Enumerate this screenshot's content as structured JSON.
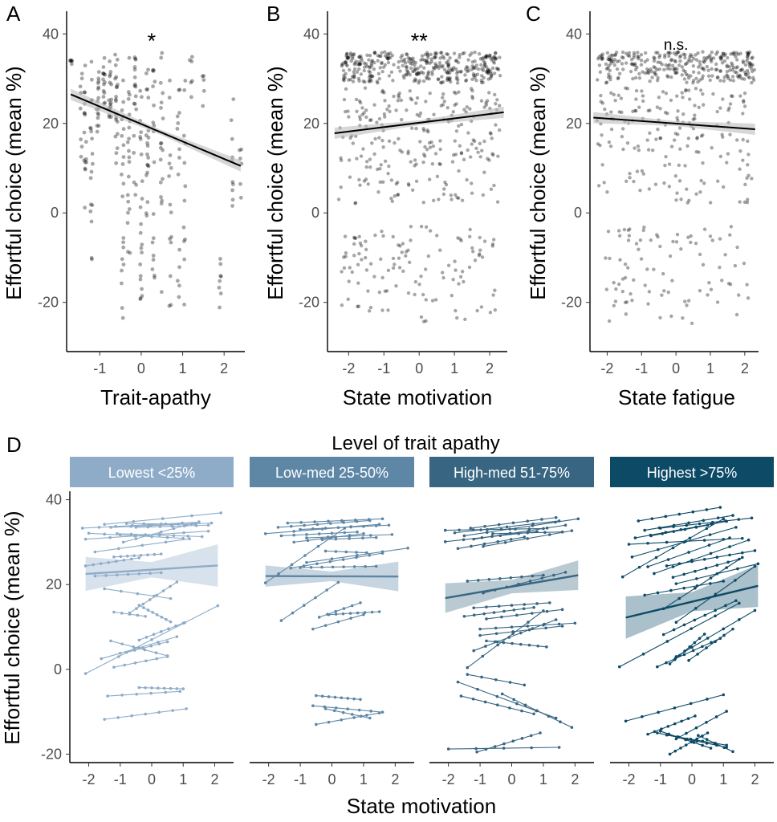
{
  "colors": {
    "point": "#000000",
    "trend": "#000000",
    "band": "#bdbdbd",
    "facets": [
      "#8eacc8",
      "#5e87a6",
      "#386682",
      "#0c4a66"
    ]
  },
  "chart_data": [
    {
      "panel": "A",
      "type": "scatter",
      "xlabel": "Trait-apathy",
      "ylabel": "Effortful choice (mean %)",
      "xlim": [
        -1.8,
        2.5
      ],
      "ylim": [
        -31,
        44
      ],
      "xticks": [
        -1,
        0,
        1,
        2
      ],
      "yticks": [
        -20,
        0,
        20,
        40
      ],
      "significance": "*",
      "trend": {
        "x": [
          -1.7,
          2.4
        ],
        "y": [
          26.5,
          10.5
        ]
      },
      "clusters": [
        {
          "x": -1.7,
          "y_min": 33,
          "y_max": 34.5,
          "n": 6
        },
        {
          "x": -1.45,
          "y_min": 10,
          "y_max": 33,
          "n": 8
        },
        {
          "x": -1.35,
          "y_min": -5,
          "y_max": 34,
          "n": 16
        },
        {
          "x": -1.2,
          "y_min": -11,
          "y_max": 34,
          "n": 18
        },
        {
          "x": -1.05,
          "y_min": 18,
          "y_max": 35,
          "n": 16
        },
        {
          "x": -0.9,
          "y_min": 23,
          "y_max": 35,
          "n": 14
        },
        {
          "x": -0.75,
          "y_min": 20,
          "y_max": 35,
          "n": 16
        },
        {
          "x": -0.6,
          "y_min": 10,
          "y_max": 36,
          "n": 20
        },
        {
          "x": -0.45,
          "y_min": -25,
          "y_max": 35,
          "n": 22
        },
        {
          "x": -0.3,
          "y_min": -11,
          "y_max": 36,
          "n": 20
        },
        {
          "x": -0.15,
          "y_min": 3,
          "y_max": 35,
          "n": 18
        },
        {
          "x": 0.0,
          "y_min": -20,
          "y_max": 36,
          "n": 22
        },
        {
          "x": 0.15,
          "y_min": -3,
          "y_max": 35,
          "n": 20
        },
        {
          "x": 0.3,
          "y_min": -22,
          "y_max": 34,
          "n": 18
        },
        {
          "x": 0.5,
          "y_min": -18,
          "y_max": 38,
          "n": 18
        },
        {
          "x": 0.7,
          "y_min": -25,
          "y_max": 35,
          "n": 14
        },
        {
          "x": 0.9,
          "y_min": -25,
          "y_max": 34,
          "n": 14
        },
        {
          "x": 1.05,
          "y_min": -21,
          "y_max": 33,
          "n": 12
        },
        {
          "x": 1.2,
          "y_min": 24,
          "y_max": 35,
          "n": 6
        },
        {
          "x": 1.5,
          "y_min": 20,
          "y_max": 31,
          "n": 5
        },
        {
          "x": 1.9,
          "y_min": -24,
          "y_max": -10,
          "n": 8
        },
        {
          "x": 2.2,
          "y_min": -1,
          "y_max": 28,
          "n": 10
        },
        {
          "x": 2.4,
          "y_min": 2,
          "y_max": 15,
          "n": 6
        }
      ]
    },
    {
      "panel": "B",
      "type": "scatter",
      "xlabel": "State motivation",
      "ylabel": "Effortful choice (mean %)",
      "xlim": [
        -2.6,
        2.5
      ],
      "ylim": [
        -31,
        44
      ],
      "xticks": [
        -2,
        -1,
        0,
        1,
        2
      ],
      "yticks": [
        -20,
        0,
        20,
        40
      ],
      "significance": "**",
      "trend": {
        "x": [
          -2.4,
          2.4
        ],
        "y": [
          17.8,
          22.5
        ]
      },
      "point_bands": [
        {
          "x_min": -2.2,
          "x_max": 2.3,
          "y_min": 29,
          "y_max": 36,
          "n": 360
        },
        {
          "x_min": -2.3,
          "x_max": 2.3,
          "y_min": 2,
          "y_max": 28,
          "n": 240
        },
        {
          "x_min": -2.2,
          "x_max": 2.2,
          "y_min": -25,
          "y_max": -3,
          "n": 120
        }
      ]
    },
    {
      "panel": "C",
      "type": "scatter",
      "xlabel": "State fatigue",
      "ylabel": "Effortful choice (mean %)",
      "xlim": [
        -2.5,
        2.4
      ],
      "ylim": [
        -31,
        44
      ],
      "xticks": [
        -2,
        -1,
        0,
        1,
        2
      ],
      "yticks": [
        -20,
        0,
        20,
        40
      ],
      "significance": "n.s.",
      "trend": {
        "x": [
          -2.4,
          2.3
        ],
        "y": [
          21.3,
          18.7
        ]
      },
      "point_bands": [
        {
          "x_min": -2.3,
          "x_max": 2.3,
          "y_min": 29,
          "y_max": 36,
          "n": 300
        },
        {
          "x_min": -2.3,
          "x_max": 2.2,
          "y_min": 2,
          "y_max": 28,
          "n": 180
        },
        {
          "x_min": -2.2,
          "x_max": 2.2,
          "y_min": -25,
          "y_max": -3,
          "n": 90
        }
      ]
    },
    {
      "panel": "D",
      "type": "line",
      "title": "Level of trait apathy",
      "xlabel": "State motivation",
      "ylabel": "Effortful choice (mean %)",
      "xlim": [
        -2.6,
        2.6
      ],
      "ylim": [
        -22,
        42
      ],
      "xticks": [
        -2,
        -1,
        0,
        1,
        2
      ],
      "yticks": [
        -20,
        0,
        20,
        40
      ],
      "facets": [
        {
          "label": "Lowest <25%",
          "trend": {
            "x": [
              -2.1,
              2.1
            ],
            "y": [
              22.5,
              24.5
            ],
            "band_start": 4,
            "band_end": 5
          },
          "lines": [
            [
              -2.2,
              33.3,
              1.5,
              34.7
            ],
            [
              -2.1,
              30.7,
              1.8,
              32.6
            ],
            [
              -1.8,
              27.7,
              1.2,
              30.8
            ],
            [
              -1.5,
              34.2,
              2.2,
              36.9
            ],
            [
              -1.3,
              33.5,
              1.9,
              34.5
            ],
            [
              -1.1,
              32.0,
              1.6,
              31.3
            ],
            [
              -0.9,
              30.0,
              1.5,
              34.8
            ],
            [
              -2.0,
              32.1,
              1.0,
              30.9
            ],
            [
              -0.5,
              33.5,
              1.8,
              34.0
            ],
            [
              -0.8,
              34.4,
              1.4,
              34.2
            ],
            [
              -2.1,
              24.4,
              -0.4,
              26.3
            ],
            [
              -1.2,
              26.5,
              0.3,
              27.2
            ],
            [
              -1.8,
              22.0,
              0.3,
              22.8
            ],
            [
              -1.5,
              19.0,
              0.6,
              16.7
            ],
            [
              -1.2,
              13.5,
              -0.2,
              12.5
            ],
            [
              -0.7,
              13.3,
              0.8,
              20.6
            ],
            [
              -0.4,
              15.1,
              0.6,
              11.2
            ],
            [
              -2.1,
              -1.0,
              2.1,
              15.0
            ],
            [
              -1.6,
              2.5,
              0.8,
              7.7
            ],
            [
              -1.3,
              6.7,
              0.5,
              3.2
            ],
            [
              -0.4,
              6.9,
              1.0,
              10.9
            ],
            [
              -0.8,
              4.0,
              0.5,
              6.5
            ],
            [
              -1.2,
              0.5,
              0.5,
              3.0
            ],
            [
              -1.5,
              -11.8,
              1.1,
              -9.3
            ],
            [
              -1.4,
              -6.3,
              0.9,
              -5.2
            ],
            [
              -0.4,
              -4.3,
              1.0,
              -4.6
            ]
          ]
        },
        {
          "label": "Low-med 25-50%",
          "trend": {
            "x": [
              -2.1,
              2.1
            ],
            "y": [
              22.0,
              21.9
            ],
            "band_start": 2.5,
            "band_end": 3.5
          },
          "lines": [
            [
              -2.1,
              32.0,
              1.5,
              34.2
            ],
            [
              -1.7,
              33.5,
              1.2,
              35.1
            ],
            [
              -1.4,
              34.5,
              1.6,
              35.5
            ],
            [
              -1.0,
              33.0,
              1.8,
              34.0
            ],
            [
              -1.6,
              31.5,
              0.8,
              32.4
            ],
            [
              -0.8,
              31.0,
              1.9,
              31.8
            ],
            [
              -1.2,
              30.0,
              1.0,
              32.0
            ],
            [
              -0.3,
              30.6,
              1.4,
              31.1
            ],
            [
              -2.1,
              20.4,
              0.4,
              33.3
            ],
            [
              -1.3,
              23.9,
              1.6,
              27.4
            ],
            [
              -0.8,
              25.2,
              2.4,
              28.6
            ],
            [
              -0.2,
              27.9,
              1.1,
              27.5
            ],
            [
              -1.0,
              24.0,
              1.4,
              24.3
            ],
            [
              -1.6,
              11.5,
              0.2,
              20.5
            ],
            [
              -0.4,
              12.3,
              0.9,
              15.7
            ],
            [
              -0.1,
              12.9,
              1.5,
              13.6
            ],
            [
              -0.6,
              9.5,
              1.0,
              12.9
            ],
            [
              -0.5,
              -6.2,
              0.9,
              -7.1
            ],
            [
              -0.6,
              -8.6,
              1.6,
              -10.1
            ],
            [
              -0.5,
              -13.0,
              1.5,
              -10.3
            ],
            [
              -0.2,
              -9.3,
              1.2,
              -11.5
            ]
          ]
        },
        {
          "label": "High-med 51-75%",
          "trend": {
            "x": [
              -2.1,
              2.1
            ],
            "y": [
              16.8,
              22.2
            ],
            "band_start": 3.5,
            "band_end": 3.5
          },
          "lines": [
            [
              -2.1,
              32.8,
              1.0,
              33.2
            ],
            [
              -1.8,
              32.2,
              1.5,
              35.0
            ],
            [
              -1.5,
              31.5,
              2.1,
              35.5
            ],
            [
              -1.2,
              30.7,
              1.7,
              34.0
            ],
            [
              -0.6,
              32.0,
              1.6,
              32.4
            ],
            [
              -2.1,
              30.1,
              0.8,
              32.5
            ],
            [
              -1.7,
              28.5,
              0.4,
              31.2
            ],
            [
              -0.9,
              29.0,
              1.9,
              32.7
            ],
            [
              -1.3,
              33.3,
              1.4,
              35.8
            ],
            [
              -1.4,
              20.8,
              1.0,
              22.2
            ],
            [
              -0.9,
              18.0,
              1.7,
              22.9
            ],
            [
              -1.2,
              14.5,
              1.2,
              15.7
            ],
            [
              -1.5,
              12.5,
              0.7,
              14.6
            ],
            [
              -1.0,
              9.5,
              2.0,
              10.9
            ],
            [
              -0.8,
              11.9,
              1.6,
              14.1
            ],
            [
              -1.2,
              4.4,
              1.4,
              11.7
            ],
            [
              -0.8,
              6.7,
              1.1,
              5.3
            ],
            [
              -1.0,
              8.0,
              1.6,
              10.2
            ],
            [
              -1.4,
              0.4,
              1.0,
              13.8
            ],
            [
              -1.4,
              -1.2,
              0.4,
              -3.7
            ],
            [
              -1.6,
              -6.3,
              0.7,
              -10.5
            ],
            [
              -0.3,
              -5.8,
              1.9,
              -13.7
            ],
            [
              -1.1,
              -19.5,
              0.9,
              -15.0
            ],
            [
              -2.0,
              -18.8,
              1.5,
              -18.4
            ],
            [
              -1.7,
              -3.0,
              1.4,
              -11.5
            ]
          ]
        },
        {
          "label": "Highest >75%",
          "trend": {
            "x": [
              -2.1,
              2.1
            ],
            "y": [
              12.2,
              19.7
            ],
            "band_start": 5,
            "band_end": 5
          },
          "lines": [
            [
              -1.7,
              35.0,
              0.9,
              38.2
            ],
            [
              -1.5,
              32.8,
              1.3,
              36.3
            ],
            [
              -1.0,
              33.3,
              1.9,
              35.7
            ],
            [
              -1.3,
              31.5,
              0.5,
              34.0
            ],
            [
              -1.8,
              31.0,
              1.1,
              34.9
            ],
            [
              -2.0,
              29.5,
              1.6,
              30.9
            ],
            [
              -1.9,
              26.5,
              1.4,
              33.5
            ],
            [
              -1.4,
              24.2,
              1.2,
              31.0
            ],
            [
              -1.2,
              22.6,
              1.8,
              30.5
            ],
            [
              -0.8,
              24.4,
              2.0,
              28.0
            ],
            [
              -0.6,
              21.7,
              1.5,
              26.0
            ],
            [
              -2.2,
              21.8,
              1.0,
              35.5
            ],
            [
              -0.5,
              20.2,
              2.1,
              24.9
            ],
            [
              -1.5,
              17.5,
              1.0,
              20.8
            ],
            [
              -0.9,
              14.3,
              1.6,
              26.4
            ],
            [
              -0.5,
              11.1,
              2.0,
              24.3
            ],
            [
              -0.9,
              8.2,
              1.4,
              16.2
            ],
            [
              -0.5,
              3.0,
              2.0,
              13.9
            ],
            [
              -2.3,
              0.6,
              1.5,
              15.6
            ],
            [
              -1.1,
              0.6,
              0.9,
              7.3
            ],
            [
              -0.1,
              2.1,
              1.3,
              9.5
            ],
            [
              -0.7,
              1.3,
              0.4,
              8.3
            ],
            [
              -2.1,
              -12.2,
              1.0,
              -6.0
            ],
            [
              -1.0,
              -14.6,
              0.6,
              -18.6
            ],
            [
              -1.4,
              -15.3,
              0.1,
              -11.0
            ],
            [
              -0.8,
              -15.5,
              1.1,
              -17.9
            ],
            [
              -0.7,
              -20.0,
              0.5,
              -15.0
            ],
            [
              -1.1,
              -15.0,
              1.1,
              -18.4
            ],
            [
              -0.5,
              -16.4,
              1.1,
              -9.9
            ],
            [
              0.2,
              -15.6,
              1.3,
              -19.4
            ]
          ]
        }
      ]
    }
  ]
}
